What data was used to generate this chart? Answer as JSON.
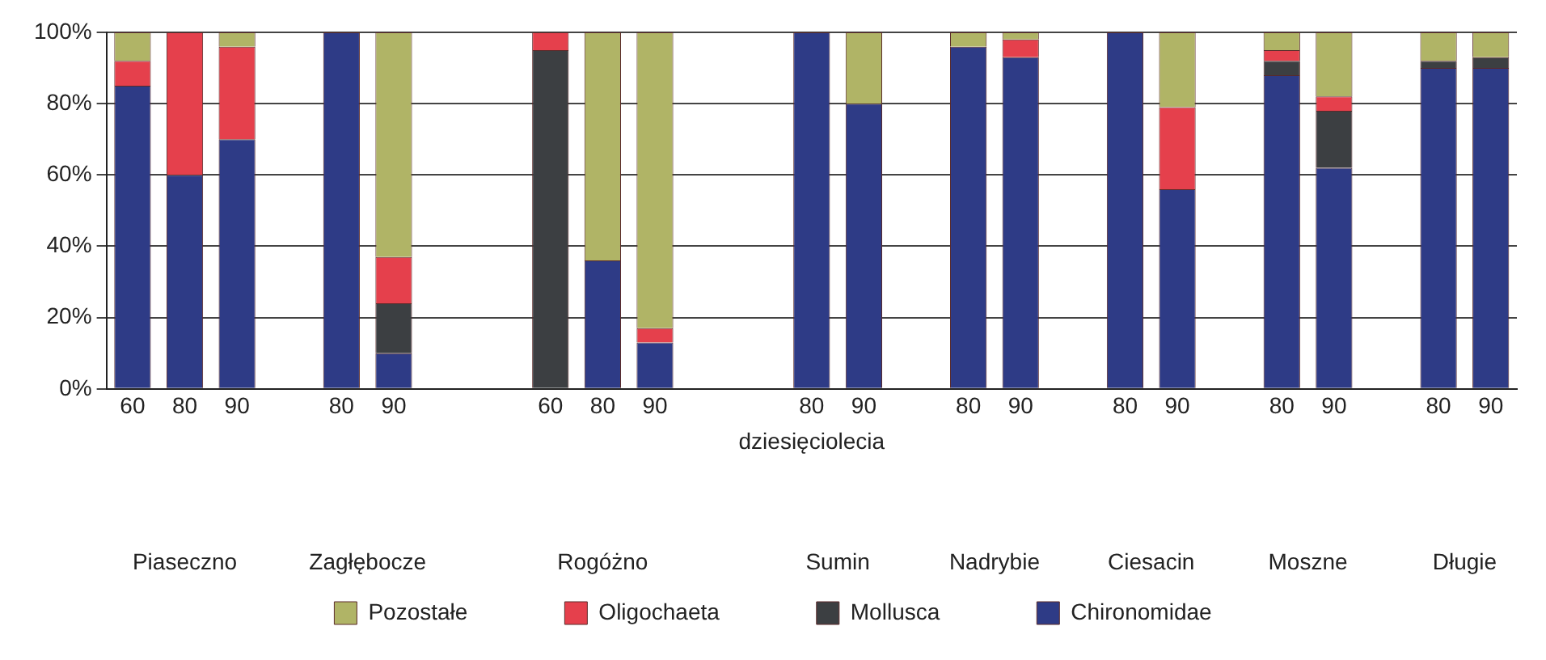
{
  "chart_data": {
    "type": "bar",
    "stacked": true,
    "xlabel": "dziesięciolecia",
    "categories": [
      "60",
      "80",
      "90",
      null,
      "80",
      "90",
      null,
      null,
      "60",
      "80",
      "90",
      null,
      null,
      "80",
      "90",
      null,
      "80",
      "90",
      null,
      "80",
      "90",
      null,
      "80",
      "90",
      null,
      "80",
      "90"
    ],
    "series": [
      {
        "name": "Chironomidae",
        "color": "#2e3b86",
        "values": [
          85,
          60,
          70,
          null,
          100,
          10,
          null,
          null,
          0,
          36,
          13,
          null,
          null,
          100,
          80,
          null,
          96,
          93,
          null,
          100,
          56,
          null,
          88,
          62,
          null,
          90,
          90
        ]
      },
      {
        "name": "Mollusca",
        "color": "#3c3f42",
        "values": [
          0,
          0,
          0,
          null,
          0,
          14,
          null,
          null,
          95,
          0,
          0,
          null,
          null,
          0,
          0,
          null,
          0,
          0,
          null,
          0,
          0,
          null,
          4,
          16,
          null,
          2,
          3
        ]
      },
      {
        "name": "Oligochaeta",
        "color": "#e5404c",
        "values": [
          7,
          40,
          26,
          null,
          0,
          13,
          null,
          null,
          5,
          0,
          4,
          null,
          null,
          0,
          0,
          null,
          0,
          5,
          null,
          0,
          23,
          null,
          3,
          4,
          null,
          0,
          0
        ]
      },
      {
        "name": "Pozostałe",
        "color": "#b0b466",
        "values": [
          8,
          0,
          4,
          null,
          0,
          63,
          null,
          null,
          0,
          64,
          83,
          null,
          null,
          0,
          20,
          null,
          4,
          2,
          null,
          0,
          21,
          null,
          5,
          18,
          null,
          8,
          7
        ]
      }
    ],
    "annotations": [
      "Piaseczno",
      "Zagłębocze",
      "Rogóżno",
      "Sumin",
      "Nadrybie",
      "Ciesacin",
      "Moszne",
      "Długie"
    ],
    "ylim": [
      0,
      100
    ],
    "yticks": [
      {
        "value": 0,
        "label": "0%"
      },
      {
        "value": 20,
        "label": "20%"
      },
      {
        "value": 40,
        "label": "40%"
      },
      {
        "value": 60,
        "label": "60%"
      },
      {
        "value": 80,
        "label": "80%"
      },
      {
        "value": 100,
        "label": "100%"
      }
    ],
    "grid": "y",
    "legend": "bottom"
  }
}
